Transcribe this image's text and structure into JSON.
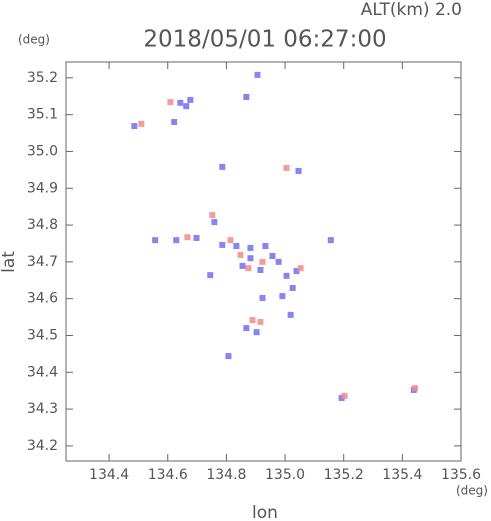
{
  "chart_data": {
    "type": "scatter",
    "title": "2018/05/01 06:27:00",
    "subtitle": "ALT(km) 2.0",
    "y_unit": "(deg)",
    "x_unit": "(deg)",
    "x_label": "lon",
    "y_label": "lat",
    "xlim": [
      134.253,
      135.6
    ],
    "ylim": [
      34.159,
      35.243
    ],
    "xticks": [
      134.4,
      134.6,
      134.8,
      {
        "value": 135,
        "label": "135.0"
      },
      135.2,
      135.4,
      135.6
    ],
    "yticks": [
      34.2,
      34.3,
      34.4,
      34.5,
      34.6,
      34.7,
      34.8,
      34.9,
      {
        "value": 35,
        "label": "35.0"
      },
      35.1,
      35.2
    ],
    "series": [
      {
        "color": "#6f6ff2",
        "x": [
          134.906,
          134.868,
          134.643,
          134.663,
          134.677,
          134.622,
          134.486,
          134.786,
          135.046,
          134.557,
          134.629,
          134.698,
          134.759,
          134.786,
          134.834,
          134.882,
          134.933,
          134.957,
          134.855,
          134.916,
          135.005,
          135.039,
          134.991,
          135.026,
          134.868,
          134.903,
          135.156,
          134.745,
          134.923,
          134.807,
          135.193,
          135.439,
          135.019,
          134.882,
          134.978
        ],
        "values": [
          35.208,
          35.148,
          35.132,
          35.123,
          35.14,
          35.08,
          35.069,
          34.958,
          34.947,
          34.759,
          34.759,
          34.765,
          34.808,
          34.746,
          34.743,
          34.738,
          34.743,
          34.716,
          34.689,
          34.678,
          34.662,
          34.675,
          34.607,
          34.629,
          34.52,
          34.509,
          34.759,
          34.664,
          34.602,
          34.444,
          34.33,
          34.352,
          34.556,
          34.71,
          34.7
        ]
      },
      {
        "color": "#f28a8a",
        "x": [
          134.609,
          134.51,
          135.005,
          134.752,
          134.814,
          134.848,
          134.923,
          135.053,
          134.889,
          134.916,
          135.203,
          135.443,
          134.667,
          134.875
        ],
        "values": [
          35.134,
          35.075,
          34.955,
          34.827,
          34.759,
          34.719,
          34.7,
          34.683,
          34.542,
          34.537,
          34.336,
          34.357,
          34.767,
          34.683
        ]
      }
    ]
  }
}
